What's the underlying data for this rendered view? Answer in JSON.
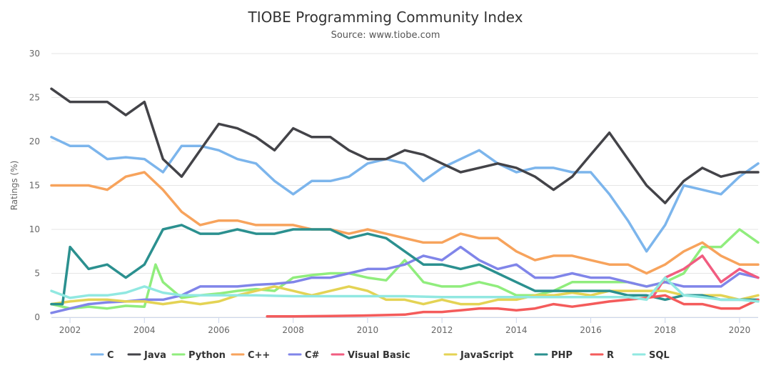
{
  "chart_data": {
    "type": "line",
    "title": "TIOBE Programming Community Index",
    "subtitle": "Source: www.tiobe.com",
    "ylabel": "Ratings (%)",
    "xlabel": "",
    "xlim": [
      2001.5,
      2020.5
    ],
    "ylim": [
      0,
      30
    ],
    "x_ticks": [
      2002,
      2004,
      2006,
      2008,
      2010,
      2012,
      2014,
      2016,
      2018,
      2020
    ],
    "y_ticks": [
      0,
      5,
      10,
      15,
      20,
      25,
      30
    ],
    "grid": "horizontal",
    "legend_position": "bottom",
    "series": [
      {
        "name": "C",
        "color": "#7cb5ec",
        "x": [
          2001.5,
          2002,
          2002.5,
          2003,
          2003.5,
          2004,
          2004.5,
          2005,
          2005.5,
          2006,
          2006.5,
          2007,
          2007.5,
          2008,
          2008.5,
          2009,
          2009.5,
          2010,
          2010.5,
          2011,
          2011.5,
          2012,
          2012.5,
          2013,
          2013.5,
          2014,
          2014.5,
          2015,
          2015.5,
          2016,
          2016.5,
          2017,
          2017.5,
          2018,
          2018.5,
          2019,
          2019.5,
          2020,
          2020.5
        ],
        "y": [
          20.5,
          19.5,
          19.5,
          18,
          18.2,
          18,
          16.5,
          19.5,
          19.5,
          19,
          18,
          17.5,
          15.5,
          14,
          15.5,
          15.5,
          16,
          17.5,
          18,
          17.5,
          15.5,
          17,
          18,
          19,
          17.5,
          16.5,
          17,
          17,
          16.5,
          16.5,
          14,
          11,
          7.5,
          10.5,
          15,
          14.5,
          14,
          16,
          17.5
        ]
      },
      {
        "name": "Java",
        "color": "#434348",
        "x": [
          2001.5,
          2002,
          2002.5,
          2003,
          2003.5,
          2004,
          2004.5,
          2005,
          2005.5,
          2006,
          2006.5,
          2007,
          2007.5,
          2008,
          2008.5,
          2009,
          2009.5,
          2010,
          2010.5,
          2011,
          2011.5,
          2012,
          2012.5,
          2013,
          2013.5,
          2014,
          2014.5,
          2015,
          2015.5,
          2016,
          2016.5,
          2017,
          2017.5,
          2018,
          2018.5,
          2019,
          2019.5,
          2020,
          2020.5
        ],
        "y": [
          26,
          24.5,
          24.5,
          24.5,
          23,
          24.5,
          18,
          16,
          19,
          22,
          21.5,
          20.5,
          19,
          21.5,
          20.5,
          20.5,
          19,
          18,
          18,
          19,
          18.5,
          17.5,
          16.5,
          17,
          17.5,
          17,
          16,
          14.5,
          16,
          18.5,
          21,
          18,
          15,
          13,
          15.5,
          17,
          16,
          16.5,
          16.5
        ]
      },
      {
        "name": "Python",
        "color": "#90ed7d",
        "x": [
          2001.5,
          2002,
          2002.5,
          2003,
          2003.5,
          2004,
          2004.3,
          2004.5,
          2005,
          2005.5,
          2006,
          2006.5,
          2007,
          2007.5,
          2008,
          2008.5,
          2009,
          2009.5,
          2010,
          2010.5,
          2011,
          2011.5,
          2012,
          2012.5,
          2013,
          2013.5,
          2014,
          2014.5,
          2015,
          2015.5,
          2016,
          2016.5,
          2017,
          2017.5,
          2018,
          2018.5,
          2019,
          2019.5,
          2020,
          2020.5
        ],
        "y": [
          1.5,
          1,
          1.2,
          1,
          1.3,
          1.2,
          6,
          4,
          2.2,
          2.5,
          2.7,
          3,
          3.2,
          3,
          4.5,
          4.8,
          5,
          5,
          4.5,
          4.2,
          6.5,
          4,
          3.5,
          3.5,
          4,
          3.5,
          2.5,
          2.5,
          3,
          4,
          4,
          4,
          4,
          3.5,
          4,
          5,
          8,
          8,
          10,
          8.5
        ]
      },
      {
        "name": "C++",
        "color": "#f7a35c",
        "x": [
          2001.5,
          2002,
          2002.5,
          2003,
          2003.5,
          2004,
          2004.5,
          2005,
          2005.5,
          2006,
          2006.5,
          2007,
          2007.5,
          2008,
          2008.5,
          2009,
          2009.5,
          2010,
          2010.5,
          2011,
          2011.5,
          2012,
          2012.5,
          2013,
          2013.5,
          2014,
          2014.5,
          2015,
          2015.5,
          2016,
          2016.5,
          2017,
          2017.5,
          2018,
          2018.5,
          2019,
          2019.5,
          2020,
          2020.5
        ],
        "y": [
          15,
          15,
          15,
          14.5,
          16,
          16.5,
          14.5,
          12,
          10.5,
          11,
          11,
          10.5,
          10.5,
          10.5,
          10,
          10,
          9.5,
          10,
          9.5,
          9,
          8.5,
          8.5,
          9.5,
          9,
          9,
          7.5,
          6.5,
          7,
          7,
          6.5,
          6,
          6,
          5,
          6,
          7.5,
          8.5,
          7,
          6,
          6
        ]
      },
      {
        "name": "C#",
        "color": "#8085e9",
        "x": [
          2001.5,
          2002,
          2002.5,
          2003,
          2003.5,
          2004,
          2004.5,
          2005,
          2005.5,
          2006,
          2006.5,
          2007,
          2007.5,
          2008,
          2008.5,
          2009,
          2009.5,
          2010,
          2010.5,
          2011,
          2011.5,
          2012,
          2012.5,
          2013,
          2013.5,
          2014,
          2014.5,
          2015,
          2015.5,
          2016,
          2016.5,
          2017,
          2017.5,
          2018,
          2018.5,
          2019,
          2019.5,
          2020,
          2020.5
        ],
        "y": [
          0.5,
          1,
          1.5,
          1.7,
          1.8,
          2,
          2,
          2.5,
          3.5,
          3.5,
          3.5,
          3.7,
          3.8,
          4,
          4.5,
          4.5,
          5,
          5.5,
          5.5,
          6,
          7,
          6.5,
          8,
          6.5,
          5.5,
          6,
          4.5,
          4.5,
          5,
          4.5,
          4.5,
          4,
          3.5,
          4,
          3.5,
          3.5,
          3.5,
          5,
          4.5
        ]
      },
      {
        "name": "Visual Basic",
        "color": "#f15c80",
        "x": [
          2017.7,
          2018,
          2018.5,
          2019,
          2019.5,
          2020,
          2020.5
        ],
        "y": [
          2.5,
          4.5,
          5.5,
          7,
          4,
          5.5,
          4.5
        ]
      },
      {
        "name": "JavaScript",
        "color": "#e4d354",
        "x": [
          2001.5,
          2002,
          2002.5,
          2003,
          2003.5,
          2004,
          2004.5,
          2005,
          2005.5,
          2006,
          2006.5,
          2007,
          2007.5,
          2008,
          2008.5,
          2009,
          2009.5,
          2010,
          2010.5,
          2011,
          2011.5,
          2012,
          2012.5,
          2013,
          2013.5,
          2014,
          2014.5,
          2015,
          2015.5,
          2016,
          2016.5,
          2017,
          2017.5,
          2018,
          2018.5,
          2019,
          2019.5,
          2020,
          2020.5
        ],
        "y": [
          1.5,
          1.8,
          2,
          2,
          1.8,
          1.8,
          1.5,
          1.8,
          1.5,
          1.8,
          2.5,
          3,
          3.5,
          3,
          2.5,
          3,
          3.5,
          3,
          2,
          2,
          1.5,
          2,
          1.5,
          1.5,
          2,
          2,
          2.5,
          2.5,
          2.8,
          2.5,
          3,
          3,
          3,
          3,
          2.5,
          2.5,
          2.5,
          2,
          2.5
        ]
      },
      {
        "name": "PHP",
        "color": "#2b908f",
        "x": [
          2001.5,
          2001.8,
          2002,
          2002.5,
          2003,
          2003.5,
          2004,
          2004.5,
          2005,
          2005.5,
          2006,
          2006.5,
          2007,
          2007.5,
          2008,
          2008.5,
          2009,
          2009.5,
          2010,
          2010.5,
          2011,
          2011.5,
          2012,
          2012.5,
          2013,
          2013.5,
          2014,
          2014.5,
          2015,
          2015.5,
          2016,
          2016.5,
          2017,
          2017.5,
          2018,
          2018.5,
          2019,
          2019.5,
          2020,
          2020.5
        ],
        "y": [
          1.5,
          1.5,
          8,
          5.5,
          6,
          4.5,
          6,
          10,
          10.5,
          9.5,
          9.5,
          10,
          9.5,
          9.5,
          10,
          10,
          10,
          9,
          9.5,
          9,
          7.5,
          6,
          6,
          5.5,
          6,
          5,
          4,
          3,
          3,
          3,
          3,
          3,
          2.5,
          2.5,
          2,
          2.5,
          2.5,
          2,
          2,
          2
        ]
      },
      {
        "name": "R",
        "color": "#f45b5b",
        "x": [
          2007.3,
          2008,
          2009,
          2010,
          2011,
          2011.5,
          2012,
          2012.5,
          2013,
          2013.5,
          2014,
          2014.5,
          2015,
          2015.5,
          2016,
          2016.5,
          2017,
          2017.5,
          2018,
          2018.5,
          2019,
          2019.5,
          2020,
          2020.5
        ],
        "y": [
          0.1,
          0.1,
          0.15,
          0.2,
          0.3,
          0.6,
          0.6,
          0.8,
          1,
          1,
          0.8,
          1,
          1.5,
          1.2,
          1.5,
          1.8,
          2,
          2.2,
          2.5,
          1.5,
          1.5,
          1,
          1,
          2
        ]
      },
      {
        "name": "SQL",
        "color": "#91e8e1",
        "x": [
          2001.5,
          2002,
          2002.5,
          2003,
          2003.5,
          2004,
          2004.5,
          2005,
          2006,
          2007,
          2008,
          2009,
          2010,
          2011,
          2012,
          2013,
          2014,
          2015,
          2016,
          2017,
          2017.5,
          2018,
          2018.5,
          2019,
          2019.5,
          2020,
          2020.5
        ],
        "y": [
          3,
          2.2,
          2.5,
          2.5,
          2.8,
          3.5,
          2.8,
          2.5,
          2.5,
          2.5,
          2.4,
          2.4,
          2.4,
          2.4,
          2.3,
          2.3,
          2.3,
          2.3,
          2.3,
          2.3,
          2,
          4.5,
          2.5,
          2.3,
          2,
          2,
          1.8
        ]
      }
    ]
  }
}
